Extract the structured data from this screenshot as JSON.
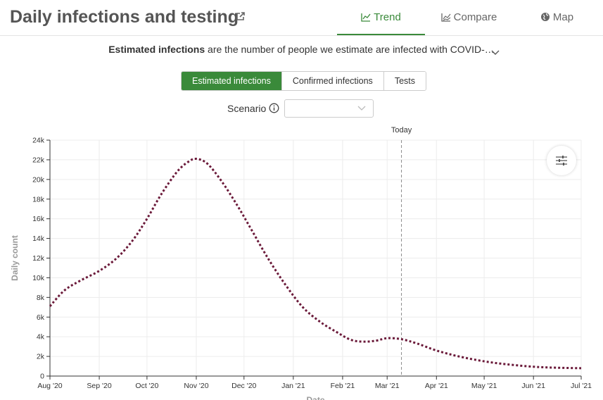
{
  "header": {
    "title": "Daily infections and testing",
    "tabs": [
      {
        "label": "Trend",
        "icon": "line-chart-icon",
        "active": true
      },
      {
        "label": "Compare",
        "icon": "compare-chart-icon",
        "active": false
      },
      {
        "label": "Map",
        "icon": "globe-icon",
        "active": false
      }
    ]
  },
  "description": {
    "bold": "Estimated infections",
    "text": " are the number of people we estimate are infected with COVID-…"
  },
  "toggle": {
    "buttons": [
      "Estimated infections",
      "Confirmed infections",
      "Tests"
    ],
    "active_index": 0
  },
  "scenario": {
    "label": "Scenario",
    "selected": ""
  },
  "colors": {
    "accent": "#3a8a3a",
    "series": "#6b1a3a"
  },
  "chart_data": {
    "type": "line",
    "title": "",
    "xlabel": "Date",
    "ylabel": "Daily count",
    "x_ticks": [
      "Aug '20",
      "Sep '20",
      "Oct '20",
      "Nov '20",
      "Dec '20",
      "Jan '21",
      "Feb '21",
      "Mar '21",
      "Apr '21",
      "May '21",
      "Jun '21",
      "Jul '21"
    ],
    "y_ticks": [
      "0",
      "2k",
      "4k",
      "6k",
      "8k",
      "10k",
      "12k",
      "14k",
      "16k",
      "18k",
      "20k",
      "22k",
      "24k"
    ],
    "ylim": [
      0,
      24000
    ],
    "xlim": [
      "2020-08-01",
      "2021-07-01"
    ],
    "grid": true,
    "today_label": "Today",
    "today_date": "2021-03-10",
    "series": [
      {
        "line_style": "dotted",
        "x": [
          "2020-08-01",
          "2020-08-10",
          "2020-08-20",
          "2020-09-01",
          "2020-09-12",
          "2020-09-22",
          "2020-10-01",
          "2020-10-10",
          "2020-10-20",
          "2020-10-27",
          "2020-11-01",
          "2020-11-08",
          "2020-11-17",
          "2020-11-27",
          "2020-12-06",
          "2020-12-16",
          "2020-12-27",
          "2021-01-07",
          "2021-01-18",
          "2021-01-28",
          "2021-02-06",
          "2021-02-14",
          "2021-02-22",
          "2021-03-01",
          "2021-03-10",
          "2021-03-20",
          "2021-04-01",
          "2021-04-15",
          "2021-05-01",
          "2021-05-15",
          "2021-06-01",
          "2021-06-15",
          "2021-07-01"
        ],
        "values": [
          7100,
          8700,
          9700,
          10700,
          12000,
          13800,
          16000,
          18500,
          20800,
          21800,
          22100,
          21600,
          19800,
          17300,
          14800,
          12000,
          9300,
          7000,
          5500,
          4500,
          3700,
          3500,
          3600,
          3850,
          3750,
          3300,
          2600,
          2000,
          1500,
          1200,
          950,
          850,
          800
        ]
      }
    ]
  }
}
